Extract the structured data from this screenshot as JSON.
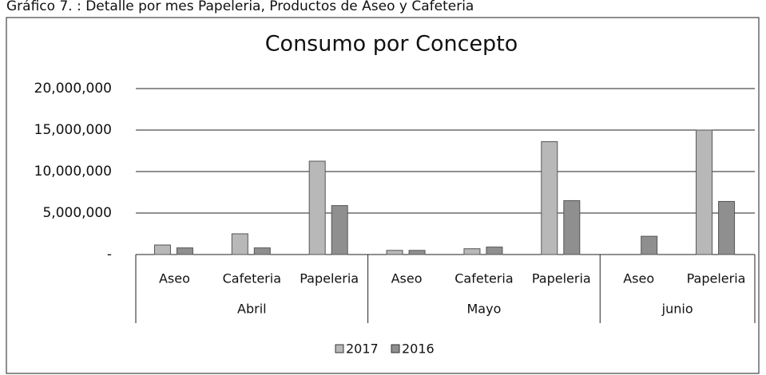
{
  "caption": "Gráfico 7. : Detalle por mes Papeleria, Productos de Aseo y Cafeteria",
  "chart_data": {
    "type": "bar",
    "title": "Consumo por Concepto",
    "groups": [
      {
        "name": "Abril",
        "categories": [
          "Aseo",
          "Cafeteria",
          "Papeleria"
        ]
      },
      {
        "name": "Mayo",
        "categories": [
          "Aseo",
          "Cafeteria",
          "Papeleria"
        ]
      },
      {
        "name": "junio",
        "categories": [
          "Aseo",
          "Papeleria"
        ]
      }
    ],
    "series": [
      {
        "name": "2017",
        "color": "#b8b8b8",
        "values": [
          1150000,
          2500000,
          11250000,
          500000,
          700000,
          13600000,
          0,
          15000000
        ]
      },
      {
        "name": "2016",
        "color": "#8f8f8f",
        "values": [
          800000,
          800000,
          5900000,
          500000,
          900000,
          6500000,
          2200000,
          6400000
        ]
      }
    ],
    "ylim": [
      0,
      20000000
    ],
    "yticks": [
      {
        "value": 0,
        "label": "-"
      },
      {
        "value": 5000000,
        "label": "5,000,000"
      },
      {
        "value": 10000000,
        "label": "10,000,000"
      },
      {
        "value": 15000000,
        "label": "15,000,000"
      },
      {
        "value": 20000000,
        "label": "20,000,000"
      }
    ],
    "grid": true,
    "legend": "bottom"
  }
}
